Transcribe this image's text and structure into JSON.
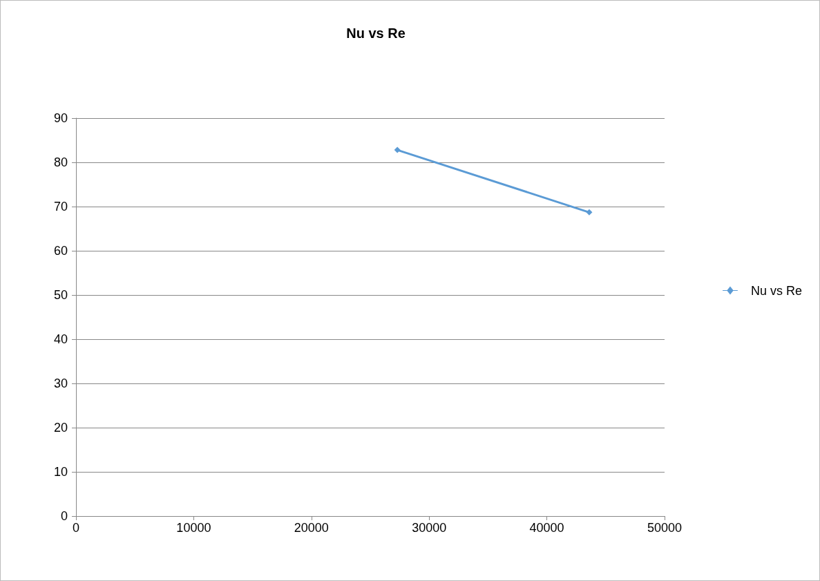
{
  "chart_data": {
    "type": "line",
    "title": "Nu vs Re",
    "x": [
      27300,
      43600
    ],
    "series": [
      {
        "name": "Nu vs Re",
        "color": "#5b9bd5",
        "values": [
          82.8,
          68.7
        ]
      }
    ],
    "xlim": [
      0,
      50000
    ],
    "xticks": [
      0,
      10000,
      20000,
      30000,
      40000,
      50000
    ],
    "ylim": [
      0,
      90
    ],
    "yticks": [
      0,
      10,
      20,
      30,
      40,
      50,
      60,
      70,
      80,
      90
    ],
    "grid": "y",
    "legend": "right",
    "marker": "diamond",
    "line_style": "solid"
  }
}
